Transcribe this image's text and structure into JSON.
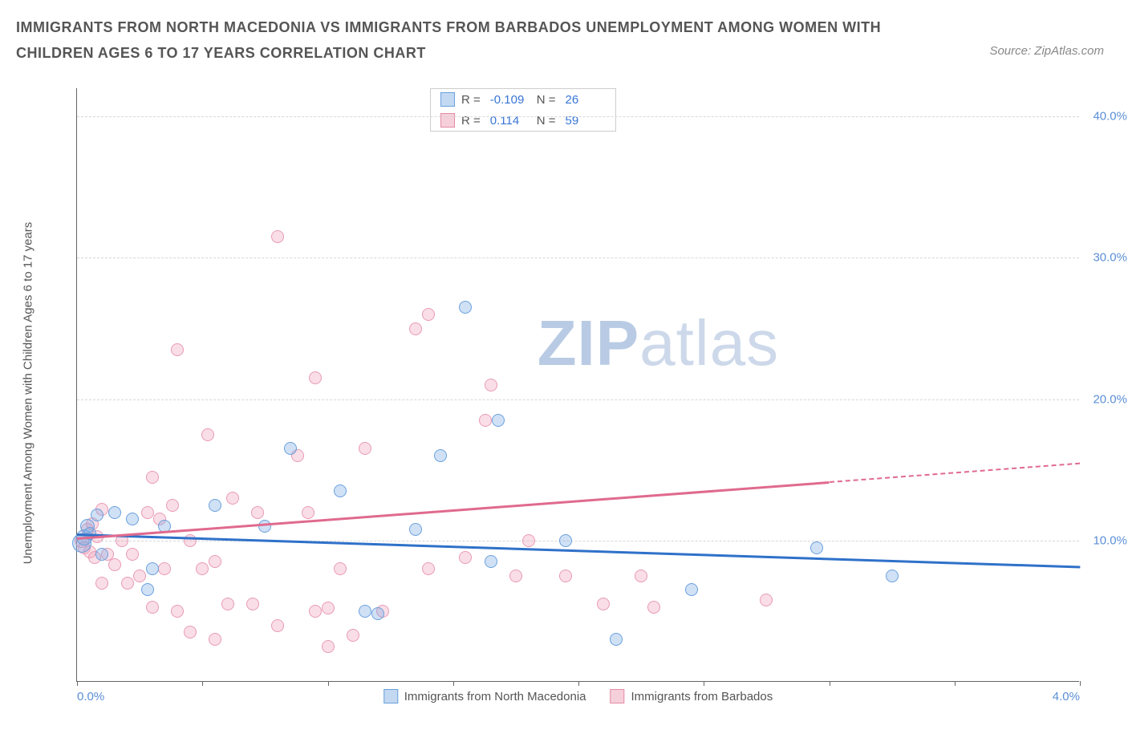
{
  "title": "IMMIGRANTS FROM NORTH MACEDONIA VS IMMIGRANTS FROM BARBADOS UNEMPLOYMENT AMONG WOMEN WITH CHILDREN AGES 6 TO 17 YEARS CORRELATION CHART",
  "source": "Source: ZipAtlas.com",
  "watermark_bold": "ZIP",
  "watermark_light": "atlas",
  "yaxis_title": "Unemployment Among Women with Children Ages 6 to 17 years",
  "chart": {
    "type": "scatter",
    "xlim": [
      0.0,
      4.0
    ],
    "ylim": [
      0.0,
      42.0
    ],
    "background_color": "#ffffff",
    "grid_color": "#d8d8d8",
    "yticks": [
      10.0,
      20.0,
      30.0,
      40.0
    ],
    "ytick_labels": [
      "10.0%",
      "20.0%",
      "30.0%",
      "40.0%"
    ],
    "xtick_positions": [
      0.0,
      0.5,
      1.0,
      1.5,
      2.0,
      2.5,
      3.0,
      3.5,
      4.0
    ],
    "xtick_labels_shown": {
      "0.0": "0.0%",
      "4.0": "4.0%"
    },
    "series": [
      {
        "name": "Immigrants from North Macedonia",
        "color_fill": "rgba(120,170,230,0.35)",
        "color_stroke": "#6aa0dd",
        "swatch_fill": "#c3d9f2",
        "swatch_border": "#6aa0dd",
        "trend_color": "#2f71c9",
        "r": -0.109,
        "n": 26,
        "marker_radius": 8,
        "trend": {
          "x0": 0.0,
          "y0": 10.5,
          "x1": 4.0,
          "y1": 8.2,
          "solid_until_x": 4.0
        },
        "points": [
          [
            0.02,
            9.8,
            12
          ],
          [
            0.03,
            10.2,
            10
          ],
          [
            0.04,
            11.0,
            9
          ],
          [
            0.05,
            10.5,
            8
          ],
          [
            0.08,
            11.8,
            8
          ],
          [
            0.1,
            9.0,
            8
          ],
          [
            0.15,
            12.0,
            8
          ],
          [
            0.22,
            11.5,
            8
          ],
          [
            0.3,
            8.0,
            8
          ],
          [
            0.28,
            6.5,
            8
          ],
          [
            0.35,
            11.0,
            8
          ],
          [
            0.55,
            12.5,
            8
          ],
          [
            0.75,
            11.0,
            8
          ],
          [
            0.85,
            16.5,
            8
          ],
          [
            1.05,
            13.5,
            8
          ],
          [
            1.15,
            5.0,
            8
          ],
          [
            1.2,
            4.8,
            8
          ],
          [
            1.35,
            10.8,
            8
          ],
          [
            1.45,
            16.0,
            8
          ],
          [
            1.55,
            26.5,
            8
          ],
          [
            1.65,
            8.5,
            8
          ],
          [
            1.68,
            18.5,
            8
          ],
          [
            1.95,
            10.0,
            8
          ],
          [
            2.15,
            3.0,
            8
          ],
          [
            2.45,
            6.5,
            8
          ],
          [
            2.95,
            9.5,
            8
          ],
          [
            3.25,
            7.5,
            8
          ]
        ]
      },
      {
        "name": "Immigrants from Barbados",
        "color_fill": "rgba(240,160,185,0.35)",
        "color_stroke": "#e89ab3",
        "swatch_fill": "#f5d0db",
        "swatch_border": "#e58aa8",
        "trend_color": "#e06a8e",
        "r": 0.114,
        "n": 59,
        "marker_radius": 8,
        "trend": {
          "x0": 0.0,
          "y0": 10.2,
          "x1": 4.0,
          "y1": 15.5,
          "solid_until_x": 3.0
        },
        "points": [
          [
            0.02,
            10.0,
            9
          ],
          [
            0.03,
            9.5,
            8
          ],
          [
            0.04,
            10.8,
            8
          ],
          [
            0.05,
            9.2,
            8
          ],
          [
            0.06,
            11.2,
            8
          ],
          [
            0.07,
            8.8,
            8
          ],
          [
            0.08,
            10.3,
            8
          ],
          [
            0.1,
            12.2,
            8
          ],
          [
            0.1,
            7.0,
            8
          ],
          [
            0.12,
            9.0,
            8
          ],
          [
            0.15,
            8.3,
            8
          ],
          [
            0.18,
            10.0,
            8
          ],
          [
            0.2,
            7.0,
            8
          ],
          [
            0.22,
            9.0,
            8
          ],
          [
            0.25,
            7.5,
            8
          ],
          [
            0.28,
            12.0,
            8
          ],
          [
            0.3,
            14.5,
            8
          ],
          [
            0.3,
            5.3,
            8
          ],
          [
            0.33,
            11.5,
            8
          ],
          [
            0.35,
            8.0,
            8
          ],
          [
            0.38,
            12.5,
            8
          ],
          [
            0.4,
            5.0,
            8
          ],
          [
            0.4,
            23.5,
            8
          ],
          [
            0.45,
            10.0,
            8
          ],
          [
            0.45,
            3.5,
            8
          ],
          [
            0.5,
            8.0,
            8
          ],
          [
            0.52,
            17.5,
            8
          ],
          [
            0.55,
            3.0,
            8
          ],
          [
            0.55,
            8.5,
            8
          ],
          [
            0.6,
            5.5,
            8
          ],
          [
            0.62,
            13.0,
            8
          ],
          [
            0.7,
            5.5,
            8
          ],
          [
            0.72,
            12.0,
            8
          ],
          [
            0.8,
            4.0,
            8
          ],
          [
            0.8,
            31.5,
            8
          ],
          [
            0.88,
            16.0,
            8
          ],
          [
            0.92,
            12.0,
            8
          ],
          [
            0.95,
            5.0,
            8
          ],
          [
            0.95,
            21.5,
            8
          ],
          [
            1.0,
            5.2,
            8
          ],
          [
            1.0,
            2.5,
            8
          ],
          [
            1.05,
            8.0,
            8
          ],
          [
            1.1,
            3.3,
            8
          ],
          [
            1.15,
            16.5,
            8
          ],
          [
            1.22,
            5.0,
            8
          ],
          [
            1.35,
            25.0,
            8
          ],
          [
            1.4,
            8.0,
            8
          ],
          [
            1.4,
            26.0,
            8
          ],
          [
            1.55,
            8.8,
            8
          ],
          [
            1.63,
            18.5,
            8
          ],
          [
            1.65,
            21.0,
            8
          ],
          [
            1.75,
            7.5,
            8
          ],
          [
            1.8,
            10.0,
            8
          ],
          [
            1.95,
            7.5,
            8
          ],
          [
            2.1,
            5.5,
            8
          ],
          [
            2.25,
            7.5,
            8
          ],
          [
            2.3,
            5.3,
            8
          ],
          [
            2.75,
            5.8,
            8
          ]
        ]
      }
    ]
  },
  "stats_legend": {
    "r_label": "R =",
    "n_label": "N ="
  },
  "bottom_legend": {
    "items": [
      "Immigrants from North Macedonia",
      "Immigrants from Barbados"
    ]
  }
}
